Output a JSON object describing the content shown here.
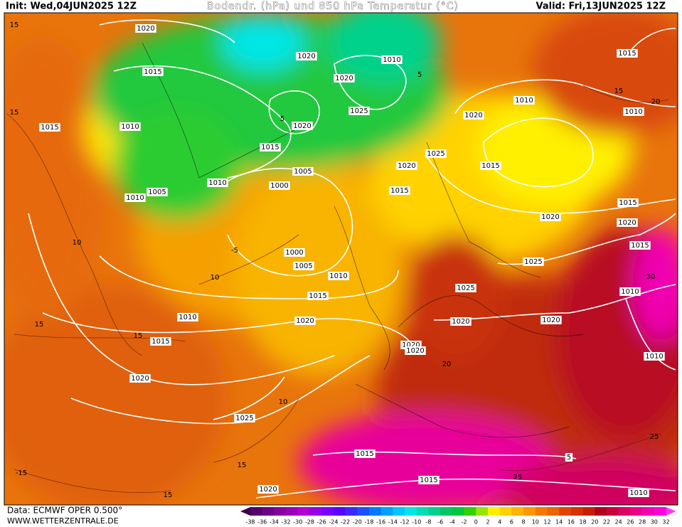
{
  "header": {
    "init": "Init: Wed,04JUN2025 12Z",
    "title": "Bodendr. (hPa) und 850 hPa Temperatur (°C)",
    "valid": "Valid: Fri,13JUN2025 12Z"
  },
  "isobar_labels": [
    1020,
    1015,
    1015,
    1010,
    1020,
    1010,
    1020,
    1025,
    1020,
    1015,
    1005,
    1000,
    1010,
    1005,
    1010,
    1020,
    1015,
    1020,
    1025,
    1010,
    1015,
    1010,
    1015,
    1015,
    1020,
    1020,
    1015,
    1025,
    1025,
    1020,
    1020,
    1010,
    1000,
    1005,
    1010,
    1015,
    1020,
    1010,
    1015,
    1020,
    1020,
    1020,
    1025,
    1010,
    1015,
    1015,
    1020,
    1010,
    5
  ],
  "temperature_labels": [
    15,
    15,
    10,
    -5,
    10,
    15,
    15,
    10,
    15,
    -15,
    15,
    20,
    15,
    30,
    25,
    25,
    20,
    5,
    5
  ],
  "colorbar": {
    "labels": [
      -38,
      -36,
      -34,
      -32,
      -30,
      -28,
      -26,
      -24,
      -22,
      -20,
      -18,
      -16,
      -14,
      -12,
      -10,
      -8,
      -6,
      -4,
      -2,
      0,
      2,
      4,
      6,
      8,
      10,
      12,
      14,
      16,
      18,
      20,
      22,
      24,
      26,
      28,
      30,
      32
    ],
    "colors": [
      "#3c0050",
      "#55006e",
      "#6e0087",
      "#8700a0",
      "#9b00b9",
      "#b400d2",
      "#9600e6",
      "#7800ff",
      "#5a00ff",
      "#3c28ff",
      "#1e50ff",
      "#0078ff",
      "#00a0ff",
      "#00c8ff",
      "#00e6e6",
      "#00dcb4",
      "#00d28c",
      "#00c864",
      "#00c83c",
      "#32d200",
      "#96e600",
      "#fff000",
      "#ffd200",
      "#ffb400",
      "#ff9600",
      "#f57800",
      "#eb6400",
      "#e14600",
      "#d73200",
      "#c81e00",
      "#b4001e",
      "#c8003c",
      "#dc0064",
      "#eb008c",
      "#f500b4",
      "#ff00dc",
      "#ff32ff"
    ]
  },
  "footer": {
    "source": "Data: ECMWF OPER 0.500°",
    "site": "WWW.WETTERZENTRALE.DE"
  }
}
